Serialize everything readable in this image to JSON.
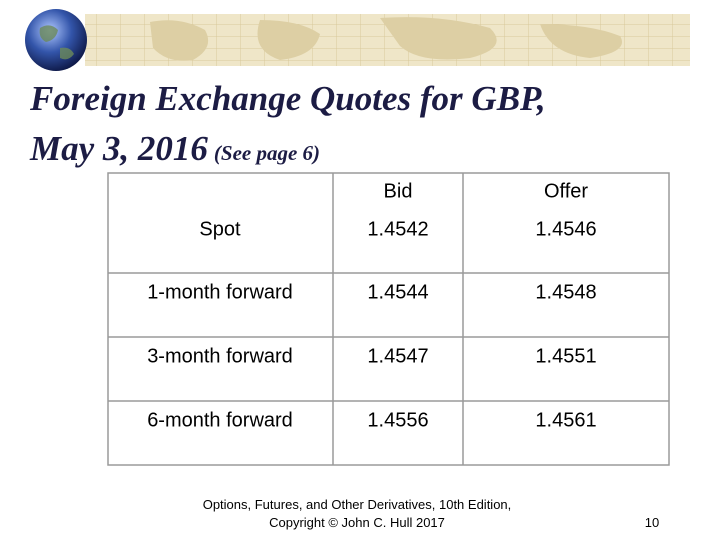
{
  "header": {
    "title": "Foreign Exchange Quotes for GBP,",
    "title_line2": "May 3, 2016",
    "title_note": "(See page 6)"
  },
  "table": {
    "columns": [
      "Bid",
      "Offer"
    ],
    "rows": [
      [
        "Spot",
        "1.4542",
        "1.4546"
      ],
      [
        "1-month forward",
        "1.4544",
        "1.4548"
      ],
      [
        "3-month forward",
        "1.4547",
        "1.4551"
      ],
      [
        "6-month forward",
        "1.4556",
        "1.4561"
      ]
    ]
  },
  "footer": {
    "line1": "Options, Futures, and Other Derivatives, 10th Edition,",
    "line2": "Copyright © John C. Hull 2017",
    "page": "10"
  }
}
